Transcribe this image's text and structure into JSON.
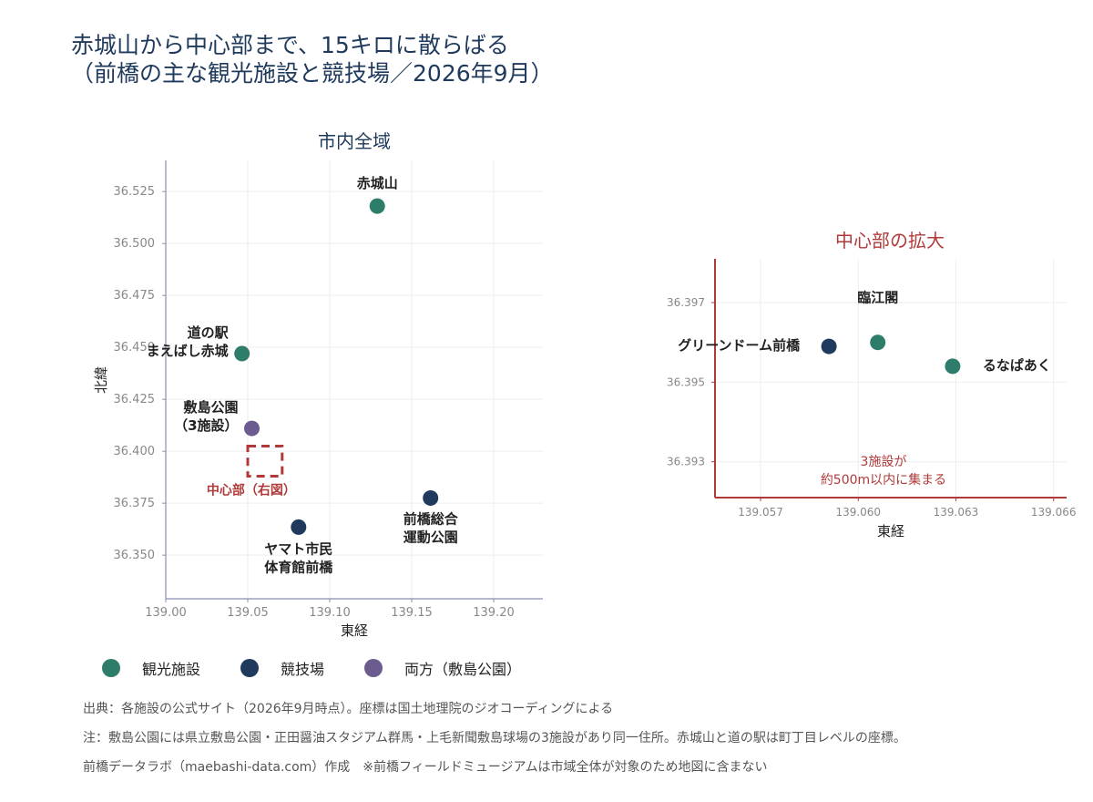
{
  "title": "赤城山から中心部まで、15キロに散らばる\n（前橋の主な観光施設と競技場／2026年9月）",
  "colors": {
    "kanko": "#2e7d6b",
    "kyogi": "#1f3a5c",
    "ryoho": "#6b5b8e",
    "accent": "#b03a3a",
    "title": "#1f3a5c"
  },
  "chart_data": [
    {
      "type": "scatter",
      "title": "市内全域",
      "xlabel": "東経",
      "ylabel": "北緯",
      "xlim": [
        139.0,
        139.23
      ],
      "ylim": [
        36.329,
        36.54
      ],
      "xticks": [
        "139.00",
        "139.05",
        "139.10",
        "139.15",
        "139.20"
      ],
      "yticks": [
        "36.350",
        "36.375",
        "36.400",
        "36.425",
        "36.450",
        "36.475",
        "36.500",
        "36.525"
      ],
      "grid": true,
      "points": [
        {
          "label": "赤城山",
          "x": 139.129,
          "y": 36.518,
          "category": "観光施設"
        },
        {
          "label": "道の駅\nまえばし赤城",
          "x": 139.0465,
          "y": 36.447,
          "category": "観光施設"
        },
        {
          "label": "敷島公園\n（3施設）",
          "x": 139.0525,
          "y": 36.411,
          "category": "両方（敷島公園）"
        },
        {
          "label": "前橋総合\n運動公園",
          "x": 139.1615,
          "y": 36.3775,
          "category": "競技場"
        },
        {
          "label": "ヤマト市民\n体育館前橋",
          "x": 139.081,
          "y": 36.3635,
          "category": "競技場"
        }
      ],
      "inset_box": {
        "label": "中心部（右図）",
        "x": [
          139.05,
          139.071
        ],
        "y": [
          36.388,
          36.4025
        ]
      }
    },
    {
      "type": "scatter",
      "title": "中心部の拡大",
      "xlabel": "東経",
      "ylabel": "",
      "xlim": [
        139.0556,
        139.0664
      ],
      "ylim": [
        36.3921,
        36.3981
      ],
      "xticks": [
        "139.057",
        "139.060",
        "139.063",
        "139.066"
      ],
      "yticks": [
        "36.393",
        "36.395",
        "36.397"
      ],
      "grid": true,
      "points": [
        {
          "label": "臨江閣",
          "x": 139.0606,
          "y": 36.396,
          "category": "観光施設"
        },
        {
          "label": "グリーンドーム前橋",
          "x": 139.0591,
          "y": 36.3959,
          "category": "競技場"
        },
        {
          "label": "るなぱあく",
          "x": 139.0629,
          "y": 36.3954,
          "category": "観光施設"
        }
      ],
      "annotation": "3施設が\n約500m以内に集まる"
    }
  ],
  "legend": [
    {
      "label": "観光施設",
      "color": "#2e7d6b"
    },
    {
      "label": "競技場",
      "color": "#1f3a5c"
    },
    {
      "label": "両方（敷島公園）",
      "color": "#6b5b8e"
    }
  ],
  "notes": [
    "出典：各施設の公式サイト（2026年9月時点）。座標は国土地理院のジオコーディングによる",
    "注：敷島公園には県立敷島公園・正田醤油スタジアム群馬・上毛新聞敷島球場の3施設があり同一住所。赤城山と道の駅は町丁目レベルの座標。",
    "前橋データラボ（maebashi-data.com）作成　※前橋フィールドミュージアムは市域全体が対象のため地図に含まない"
  ]
}
